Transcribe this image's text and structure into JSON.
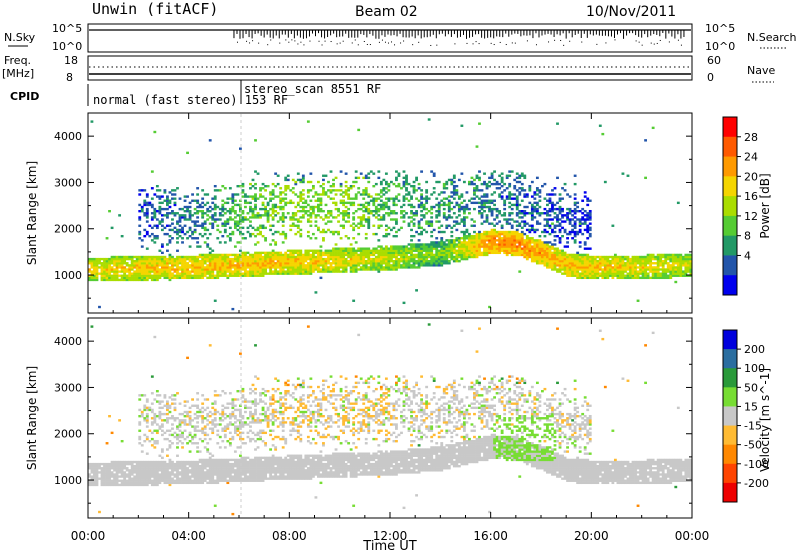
{
  "header": {
    "station": "Unwin (fitACF)",
    "beam": "Beam 02",
    "date": "10/Nov/2011"
  },
  "top_panels": {
    "nsky_label": "N.Sky",
    "nsky_ticks": [
      "10^5",
      "10^0"
    ],
    "nsearch_label": "N.Search",
    "nsearch_ticks": [
      "10^5",
      "10^0"
    ],
    "freq_label": "Freq.",
    "freq_unit": "[MHz]",
    "freq_ticks": [
      "18",
      "8"
    ],
    "nave_label": "Nave",
    "nave_ticks": [
      "60",
      "0"
    ],
    "cpid_label": "CPID",
    "cpid_entries": [
      {
        "text": "normal (fast stereo) 153 RF",
        "start_hour": 0
      },
      {
        "text": "stereo_scan 8551 RF",
        "start_hour": 6.0
      }
    ]
  },
  "power_colorbar": {
    "label": "Power [dB]",
    "ticks": [
      "28",
      "24",
      "20",
      "16",
      "12",
      "8",
      "4"
    ],
    "colors": [
      "#ff0000",
      "#ff5a00",
      "#ff9a00",
      "#f5d500",
      "#aadd00",
      "#55cc33",
      "#229966",
      "#2255aa",
      "#0000ee"
    ]
  },
  "velocity_colorbar": {
    "label": "Velocity [m s^-1]",
    "ticks": [
      "200",
      "100",
      "50",
      "15",
      "-15",
      "-50",
      "-100",
      "-200"
    ],
    "colors": [
      "#0000dd",
      "#2b6ea0",
      "#2a9a3a",
      "#77dd33",
      "#c8c8c8",
      "#ffbb33",
      "#ff8800",
      "#ff4400",
      "#ee0000"
    ]
  },
  "chart_data": [
    {
      "type": "heatmap",
      "panel": "power",
      "ylabel": "Slant Range [km]",
      "ylim": [
        180,
        4500
      ],
      "yticks": [
        "1000",
        "2000",
        "3000",
        "4000"
      ],
      "xlim": [
        0,
        24
      ],
      "xticks": [
        "00:00",
        "04:00",
        "08:00",
        "12:00",
        "16:00",
        "20:00",
        "00:00"
      ],
      "xlabel": "Time UT",
      "main_echo_band": {
        "hours": [
          0,
          4,
          8,
          12,
          14,
          16,
          17,
          18,
          19,
          20,
          22,
          24
        ],
        "range_km": [
          1100,
          1150,
          1250,
          1350,
          1450,
          1700,
          1650,
          1450,
          1200,
          1150,
          1150,
          1200
        ],
        "power_db": [
          22,
          24,
          24,
          20,
          16,
          28,
          28,
          26,
          24,
          24,
          22,
          20
        ]
      },
      "upper_echo_layer": {
        "hours": [
          2,
          4,
          6,
          8,
          10,
          12,
          14,
          16,
          18,
          20
        ],
        "range_km": [
          2200,
          2250,
          2300,
          2400,
          2450,
          2500,
          2400,
          2600,
          2300,
          2100
        ],
        "power_db": [
          6,
          8,
          12,
          16,
          16,
          12,
          10,
          8,
          6,
          4
        ]
      }
    },
    {
      "type": "heatmap",
      "panel": "velocity",
      "ylabel": "Slant Range [km]",
      "ylim": [
        180,
        4500
      ],
      "yticks": [
        "1000",
        "2000",
        "3000",
        "4000"
      ],
      "xlim": [
        0,
        24
      ],
      "xticks": [
        "00:00",
        "04:00",
        "08:00",
        "12:00",
        "16:00",
        "20:00",
        "00:00"
      ],
      "xlabel": "Time UT",
      "dominant_velocity_ms": 0,
      "regions": [
        {
          "hours": [
            0,
            24
          ],
          "range_km": [
            700,
            1500
          ],
          "velocity_ms": 0
        },
        {
          "hours": [
            4,
            12
          ],
          "range_km": [
            1500,
            2900
          ],
          "velocity_ms": -30
        },
        {
          "hours": [
            16,
            18.5
          ],
          "range_km": [
            1400,
            2400
          ],
          "velocity_ms": 40
        }
      ]
    }
  ]
}
